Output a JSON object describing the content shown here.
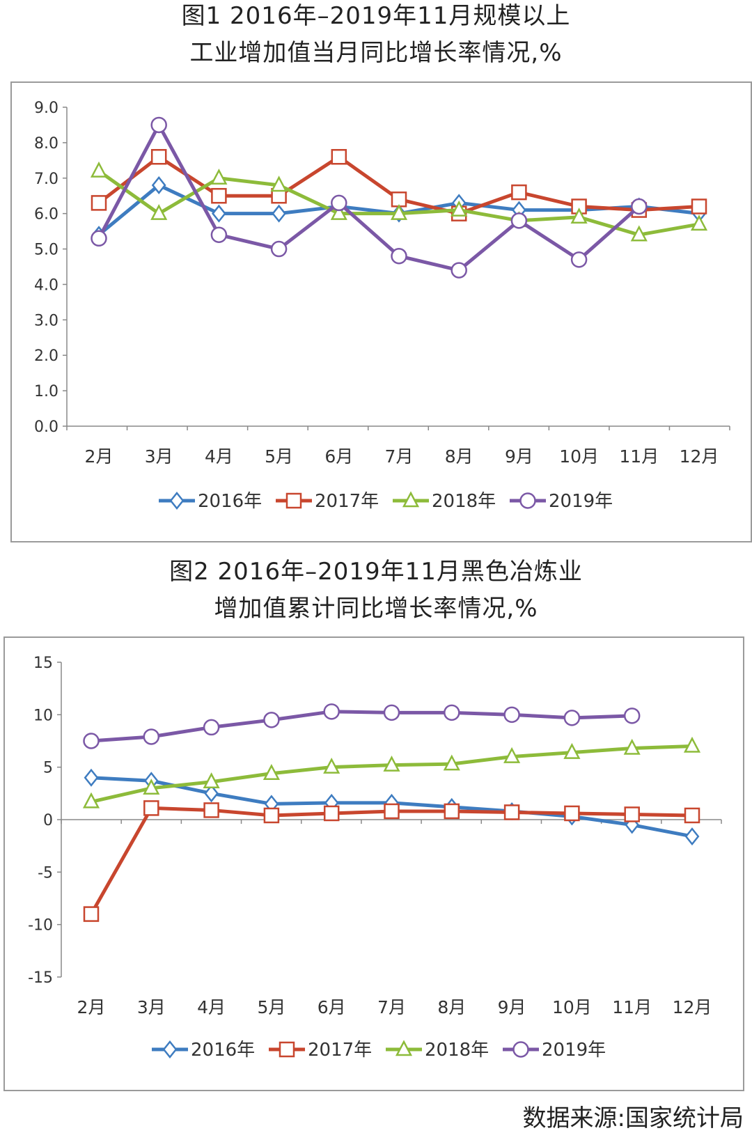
{
  "chart_data": [
    {
      "type": "line",
      "title": "图1 2016年–2019年11月规模以上\n工业增加值当月同比增长率情况,%",
      "title_lines": [
        "图1 2016年–2019年11月规模以上",
        "工业增加值当月同比增长率情况,%"
      ],
      "categories": [
        "2月",
        "3月",
        "4月",
        "5月",
        "6月",
        "7月",
        "8月",
        "9月",
        "10月",
        "11月",
        "12月"
      ],
      "ylim": [
        0,
        9
      ],
      "yticks": [
        "0.0",
        "1.0",
        "2.0",
        "3.0",
        "4.0",
        "5.0",
        "6.0",
        "7.0",
        "8.0",
        "9.0"
      ],
      "grid": false,
      "legend": "bottom",
      "series": [
        {
          "name": "2016年",
          "color": "#3e7cc0",
          "marker": "diamond",
          "values": [
            5.4,
            6.8,
            6.0,
            6.0,
            6.2,
            6.0,
            6.3,
            6.1,
            6.1,
            6.2,
            6.0
          ]
        },
        {
          "name": "2017年",
          "color": "#c8462e",
          "marker": "square",
          "values": [
            6.3,
            7.6,
            6.5,
            6.5,
            7.6,
            6.4,
            6.0,
            6.6,
            6.2,
            6.1,
            6.2
          ]
        },
        {
          "name": "2018年",
          "color": "#8dbb3a",
          "marker": "triangle",
          "values": [
            7.2,
            6.0,
            7.0,
            6.8,
            6.0,
            6.0,
            6.1,
            5.8,
            5.9,
            5.4,
            5.7
          ]
        },
        {
          "name": "2019年",
          "color": "#7b58a6",
          "marker": "circle",
          "values": [
            5.3,
            8.5,
            5.4,
            5.0,
            6.3,
            4.8,
            4.4,
            5.8,
            4.7,
            6.2,
            null
          ]
        }
      ]
    },
    {
      "type": "line",
      "title_lines": [
        "图2 2016年–2019年11月黑色冶炼业",
        "增加值累计同比增长率情况,%"
      ],
      "categories": [
        "2月",
        "3月",
        "4月",
        "5月",
        "6月",
        "7月",
        "8月",
        "9月",
        "10月",
        "11月",
        "12月"
      ],
      "ylim": [
        -15,
        15
      ],
      "yticks": [
        "-15",
        "-10",
        "-5",
        "0",
        "5",
        "10",
        "15"
      ],
      "grid": false,
      "legend": "bottom",
      "series": [
        {
          "name": "2016年",
          "color": "#3e7cc0",
          "marker": "diamond",
          "values": [
            4.0,
            3.7,
            2.5,
            1.5,
            1.6,
            1.6,
            1.2,
            0.8,
            0.3,
            -0.5,
            -1.6
          ]
        },
        {
          "name": "2017年",
          "color": "#c8462e",
          "marker": "square",
          "values": [
            -9.0,
            1.1,
            0.9,
            0.4,
            0.6,
            0.8,
            0.8,
            0.7,
            0.6,
            0.5,
            0.4
          ]
        },
        {
          "name": "2018年",
          "color": "#8dbb3a",
          "marker": "triangle",
          "values": [
            1.7,
            3.0,
            3.6,
            4.4,
            5.0,
            5.2,
            5.3,
            6.0,
            6.4,
            6.8,
            7.0
          ]
        },
        {
          "name": "2019年",
          "color": "#7b58a6",
          "marker": "circle",
          "values": [
            7.5,
            7.9,
            8.8,
            9.5,
            10.3,
            10.2,
            10.2,
            10.0,
            9.7,
            9.9,
            null
          ]
        }
      ]
    }
  ],
  "source": "数据来源:国家统计局"
}
